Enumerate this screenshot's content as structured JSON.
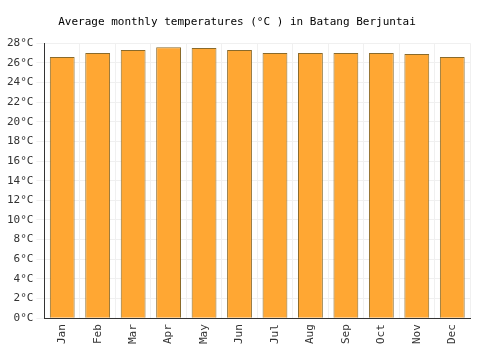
{
  "chart_data": {
    "type": "bar",
    "title": "Average monthly temperatures (°C ) in Batang Berjuntai",
    "categories": [
      "Jan",
      "Feb",
      "Mar",
      "Apr",
      "May",
      "Jun",
      "Jul",
      "Aug",
      "Sep",
      "Oct",
      "Nov",
      "Dec"
    ],
    "values": [
      26.6,
      27.0,
      27.3,
      27.6,
      27.5,
      27.3,
      27.0,
      27.0,
      27.0,
      27.0,
      26.9,
      26.6
    ],
    "color": "#ffa733",
    "ylim": [
      0,
      28
    ],
    "yticks": [
      {
        "value": 0,
        "label": "0°C"
      },
      {
        "value": 2,
        "label": "2°C"
      },
      {
        "value": 4,
        "label": "4°C"
      },
      {
        "value": 6,
        "label": "6°C"
      },
      {
        "value": 8,
        "label": "8°C"
      },
      {
        "value": 10,
        "label": "10°C"
      },
      {
        "value": 12,
        "label": "12°C"
      },
      {
        "value": 14,
        "label": "14°C"
      },
      {
        "value": 16,
        "label": "16°C"
      },
      {
        "value": 18,
        "label": "18°C"
      },
      {
        "value": 20,
        "label": "20°C"
      },
      {
        "value": 22,
        "label": "22°C"
      },
      {
        "value": 24,
        "label": "24°C"
      },
      {
        "value": 26,
        "label": "26°C"
      },
      {
        "value": 28,
        "label": "28°C"
      }
    ],
    "grid": true
  }
}
